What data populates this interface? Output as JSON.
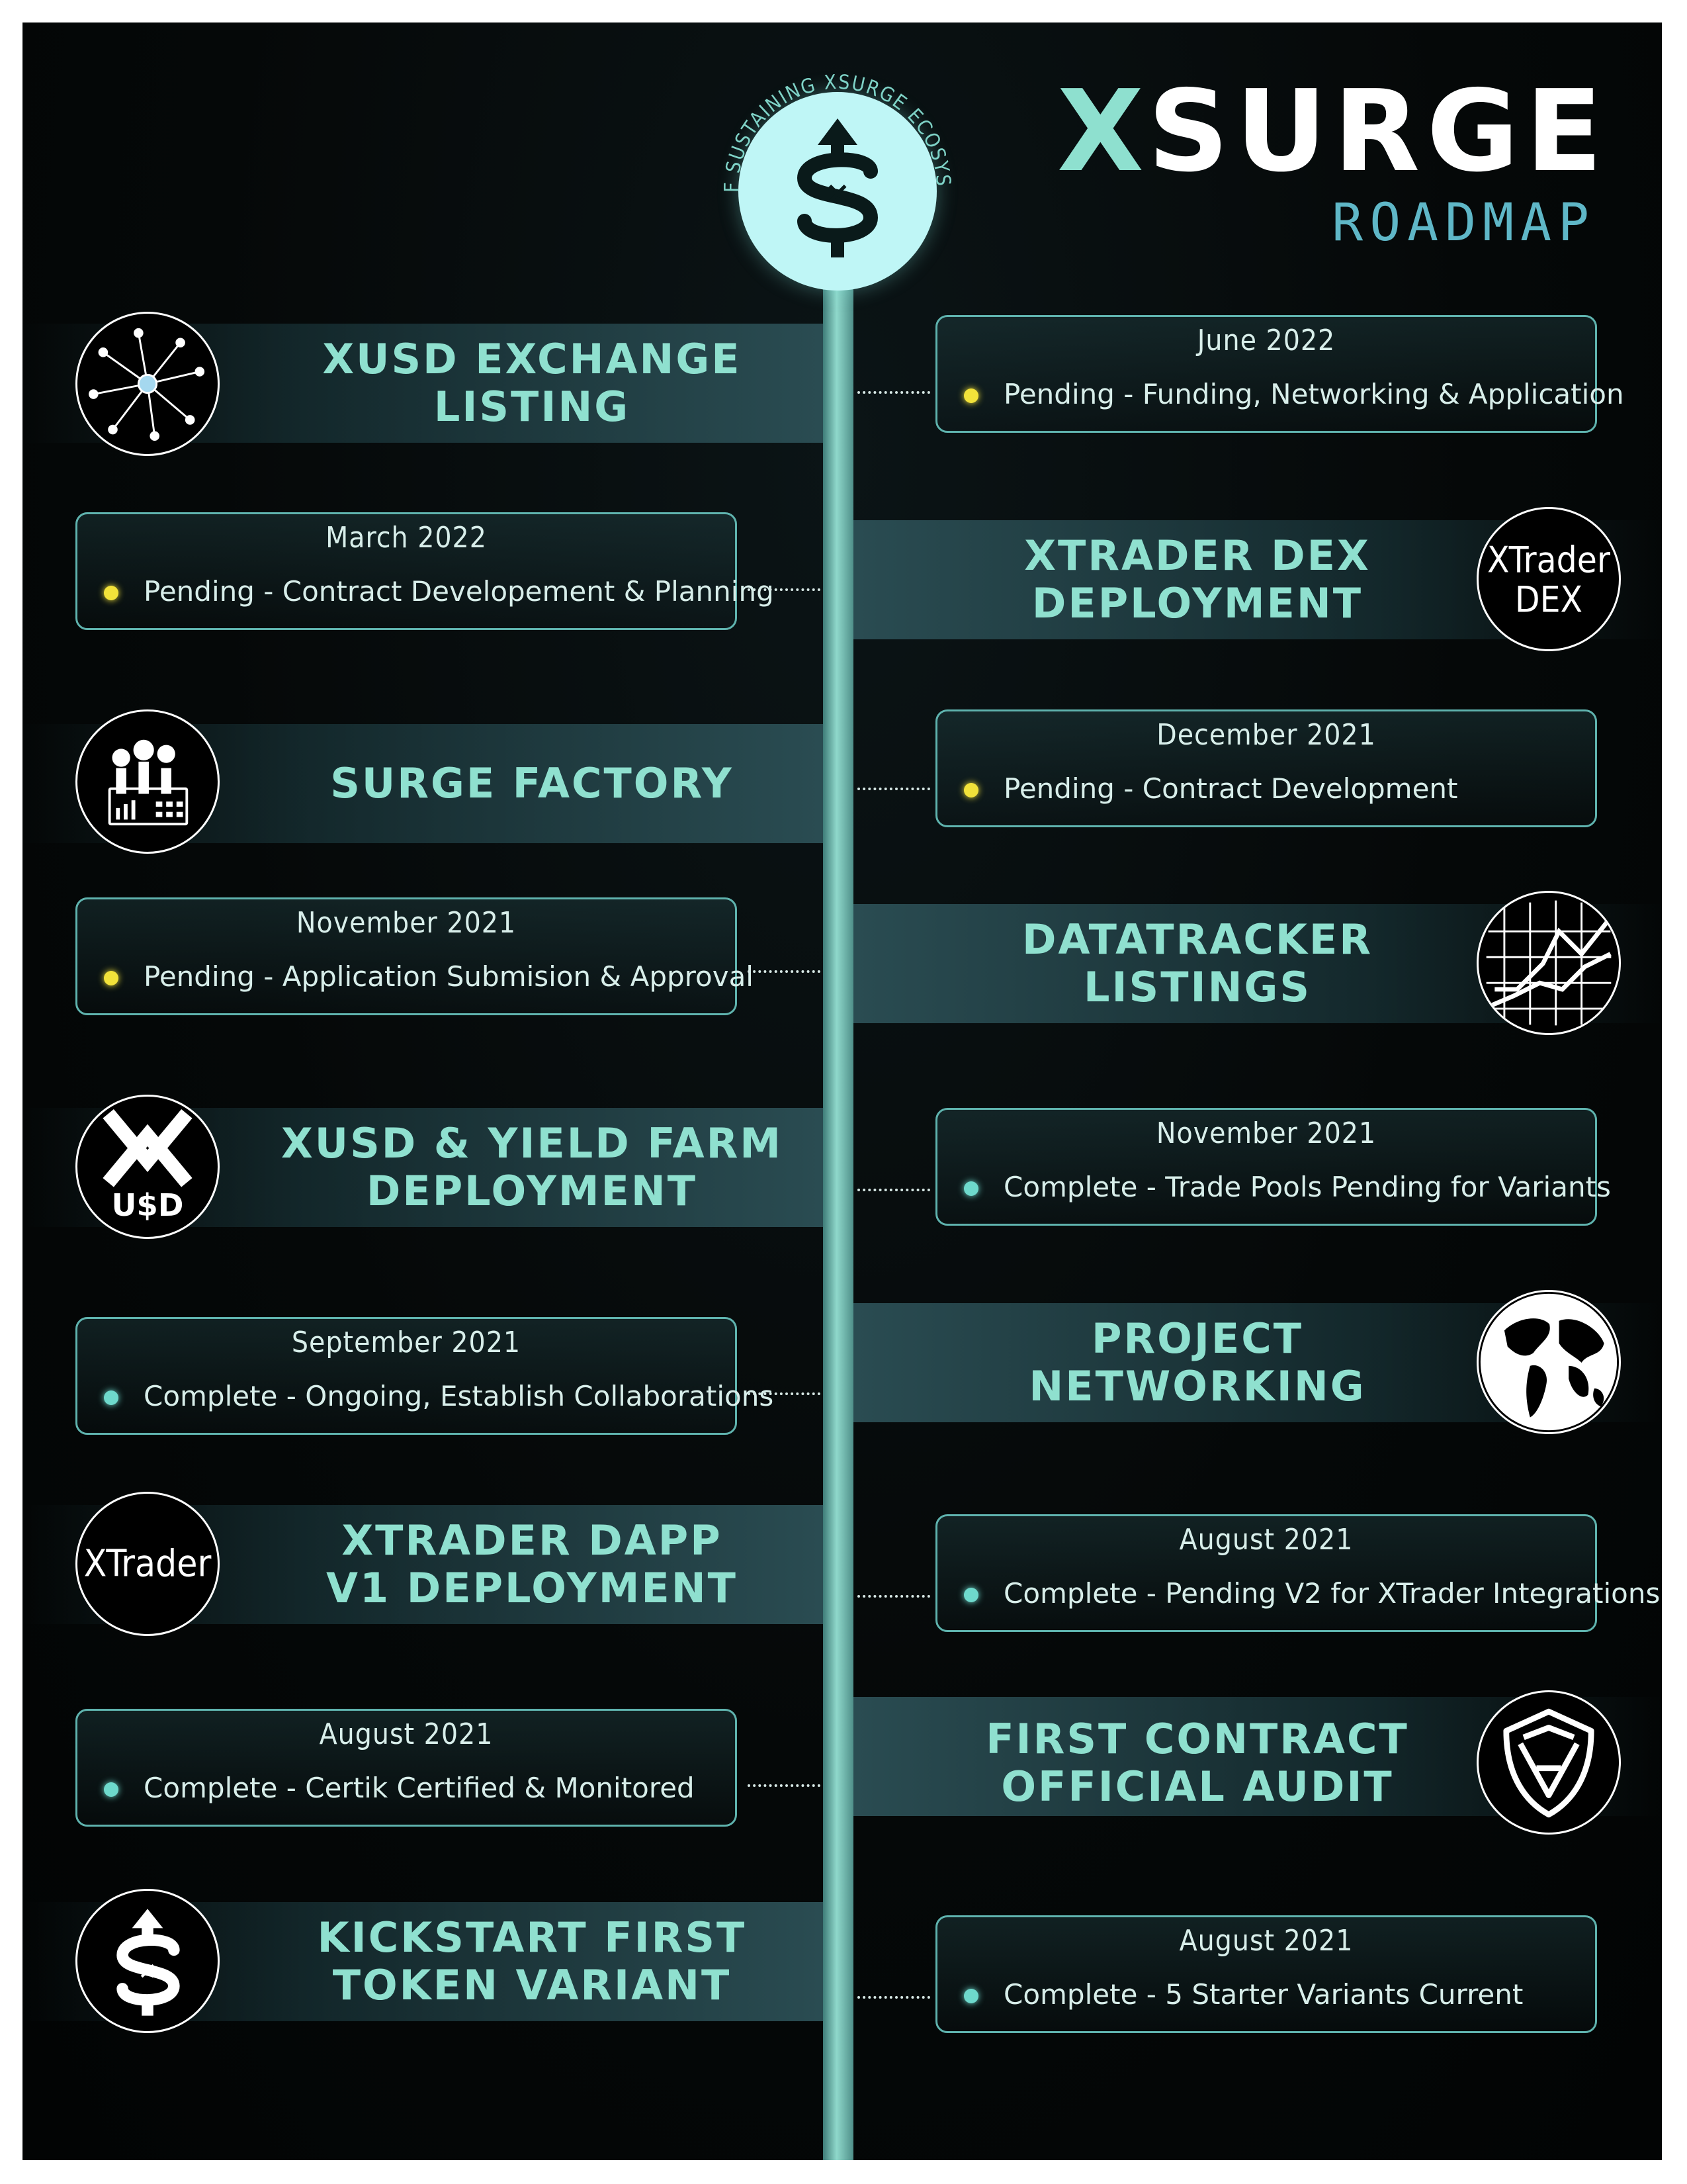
{
  "brand": {
    "prefix": "X",
    "name": "SURGE",
    "subtitle": "ROADMAP",
    "emblem_text": "SELF SUSTAINING XSURGE ECOSYSTEM"
  },
  "milestones": [
    {
      "title": "XUSD EXCHANGE\nLISTING",
      "icon": "network-icon"
    },
    {
      "title": "XTRADER DEX\nDEPLOYMENT",
      "icon": "xtrader-dex-icon",
      "icon_text": "XTrader\nDEX"
    },
    {
      "title": "SURGE FACTORY",
      "icon": "factory-icon"
    },
    {
      "title": "DATATRACKER\nLISTINGS",
      "icon": "chart-grid-icon"
    },
    {
      "title": "XUSD & YIELD FARM\nDEPLOYMENT",
      "icon": "xusd-icon",
      "icon_text": "U$D"
    },
    {
      "title": "PROJECT\nNETWORKING",
      "icon": "globe-icon"
    },
    {
      "title": "XTRADER DAPP\nV1 DEPLOYMENT",
      "icon": "xtrader-icon",
      "icon_text": "XTrader"
    },
    {
      "title": "FIRST CONTRACT\nOFFICIAL AUDIT",
      "icon": "certik-shield-icon"
    },
    {
      "title": "KICKSTART FIRST\nTOKEN VARIANT",
      "icon": "xsurge-logo-icon"
    }
  ],
  "status_cards": [
    {
      "date": "June 2022",
      "status": "Pending - Funding, Networking & Application",
      "state": "pending"
    },
    {
      "date": "March 2022",
      "status": "Pending - Contract Developement & Planning",
      "state": "pending"
    },
    {
      "date": "December 2021",
      "status": "Pending - Contract Development",
      "state": "pending"
    },
    {
      "date": "November 2021",
      "status": "Pending - Application Submision & Approval",
      "state": "pending"
    },
    {
      "date": "November 2021",
      "status": "Complete - Trade Pools Pending for Variants",
      "state": "complete"
    },
    {
      "date": "September 2021",
      "status": "Complete - Ongoing, Establish Collaborations",
      "state": "complete"
    },
    {
      "date": "August 2021",
      "status": "Complete - Pending V2 for XTrader Integrations",
      "state": "complete"
    },
    {
      "date": "August 2021",
      "status": "Complete - Certik Certified & Monitored",
      "state": "complete"
    },
    {
      "date": "August 2021",
      "status": "Complete - 5 Starter Variants Current",
      "state": "complete"
    }
  ],
  "colors": {
    "accent": "#8fe0cf",
    "pending": "#f2e23a",
    "complete": "#6ed9cc",
    "border": "#5fb3ae"
  }
}
